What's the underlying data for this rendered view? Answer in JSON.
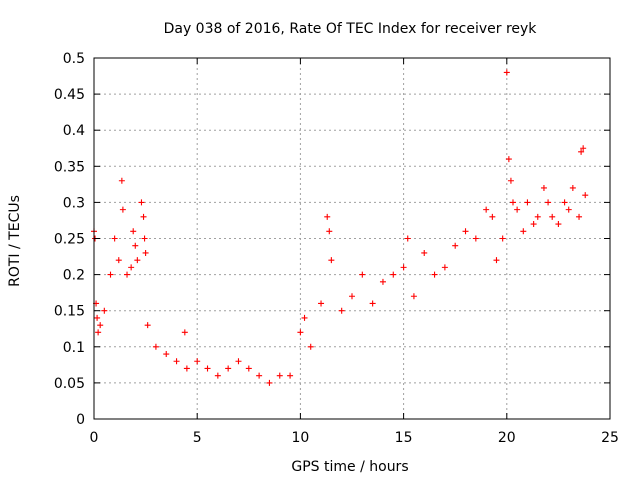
{
  "chart_data": {
    "type": "scatter",
    "title": "Day 038 of 2016, Rate Of TEC Index for receiver reyk",
    "xlabel": "GPS time / hours",
    "ylabel": "ROTI / TECUs",
    "xlim": [
      0,
      25
    ],
    "ylim": [
      0,
      0.5
    ],
    "xticks": [
      0,
      5,
      10,
      15,
      20,
      25
    ],
    "yticks": [
      0,
      0.05,
      0.1,
      0.15,
      0.2,
      0.25,
      0.3,
      0.35,
      0.4,
      0.45,
      0.5
    ],
    "grid": true,
    "marker": "+",
    "color": "#ff0000",
    "series": [
      {
        "name": "ROTI",
        "x": [
          0.0,
          0.05,
          0.1,
          0.15,
          0.2,
          0.3,
          0.5,
          0.8,
          1.0,
          1.2,
          1.35,
          1.4,
          1.6,
          1.8,
          1.9,
          2.0,
          2.1,
          2.3,
          2.4,
          2.45,
          2.5,
          2.6,
          3.0,
          3.5,
          4.0,
          4.4,
          4.5,
          5.0,
          5.5,
          6.0,
          6.5,
          7.0,
          7.5,
          8.0,
          8.5,
          9.0,
          9.5,
          10.0,
          10.2,
          10.5,
          11.0,
          11.3,
          11.4,
          11.5,
          12.0,
          12.5,
          13.0,
          13.5,
          14.0,
          14.5,
          15.0,
          15.2,
          15.5,
          16.0,
          16.5,
          17.0,
          17.5,
          18.0,
          18.5,
          19.0,
          19.3,
          19.5,
          19.8,
          20.0,
          20.1,
          20.2,
          20.3,
          20.5,
          20.8,
          21.0,
          21.3,
          21.5,
          21.8,
          22.0,
          22.2,
          22.5,
          22.8,
          23.0,
          23.2,
          23.5,
          23.6,
          23.7,
          23.8
        ],
        "y": [
          0.26,
          0.25,
          0.16,
          0.14,
          0.12,
          0.13,
          0.15,
          0.2,
          0.25,
          0.22,
          0.33,
          0.29,
          0.2,
          0.21,
          0.26,
          0.24,
          0.22,
          0.3,
          0.28,
          0.25,
          0.23,
          0.13,
          0.1,
          0.09,
          0.08,
          0.12,
          0.07,
          0.08,
          0.07,
          0.06,
          0.07,
          0.08,
          0.07,
          0.06,
          0.05,
          0.06,
          0.06,
          0.12,
          0.14,
          0.1,
          0.16,
          0.28,
          0.26,
          0.22,
          0.15,
          0.17,
          0.2,
          0.16,
          0.19,
          0.2,
          0.21,
          0.25,
          0.17,
          0.23,
          0.2,
          0.21,
          0.24,
          0.26,
          0.25,
          0.29,
          0.28,
          0.22,
          0.25,
          0.48,
          0.36,
          0.33,
          0.3,
          0.29,
          0.26,
          0.3,
          0.27,
          0.28,
          0.32,
          0.3,
          0.28,
          0.27,
          0.3,
          0.29,
          0.32,
          0.28,
          0.37,
          0.375,
          0.31
        ]
      }
    ]
  }
}
